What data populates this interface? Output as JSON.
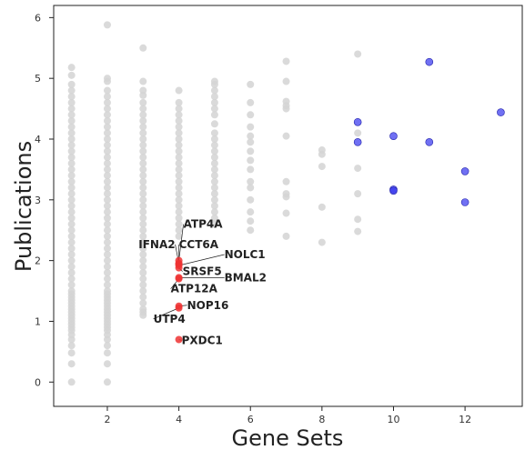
{
  "chart_data": {
    "type": "scatter",
    "xlabel": "Gene Sets",
    "ylabel": "Publications",
    "xlim": [
      0.5,
      13.6
    ],
    "ylim": [
      -0.4,
      6.2
    ],
    "xticks": [
      2,
      4,
      6,
      8,
      10,
      12
    ],
    "yticks": [
      0,
      1,
      2,
      3,
      4,
      5,
      6
    ],
    "grid": false,
    "colors": {
      "background": "#d3d3d3",
      "highlight": "#ee3333",
      "top": "#3333ee",
      "text": "#222222"
    },
    "background_series": [
      {
        "x": 1,
        "y": [
          0,
          0.3,
          0.48,
          0.6,
          0.7,
          0.78,
          0.85,
          0.9,
          0.95,
          1.0,
          1.05,
          1.1,
          1.15,
          1.2,
          1.25,
          1.3,
          1.35,
          1.4,
          1.45,
          1.5,
          1.6,
          1.7,
          1.8,
          1.9,
          2.0,
          2.1,
          2.2,
          2.3,
          2.4,
          2.5,
          2.6,
          2.7,
          2.8,
          2.9,
          3.0,
          3.1,
          3.2,
          3.3,
          3.4,
          3.5,
          3.6,
          3.7,
          3.8,
          3.9,
          4.0,
          4.1,
          4.2,
          4.3,
          4.4,
          4.5,
          4.6,
          4.7,
          4.8,
          4.9,
          5.05,
          5.18
        ]
      },
      {
        "x": 2,
        "y": [
          0,
          0.3,
          0.48,
          0.6,
          0.7,
          0.78,
          0.85,
          0.9,
          0.95,
          1.0,
          1.05,
          1.1,
          1.15,
          1.2,
          1.25,
          1.3,
          1.35,
          1.4,
          1.45,
          1.5,
          1.6,
          1.7,
          1.8,
          1.9,
          2.0,
          2.1,
          2.2,
          2.3,
          2.4,
          2.5,
          2.6,
          2.7,
          2.8,
          2.9,
          3.0,
          3.1,
          3.2,
          3.3,
          3.4,
          3.5,
          3.6,
          3.7,
          3.8,
          3.9,
          4.0,
          4.1,
          4.2,
          4.3,
          4.4,
          4.5,
          4.6,
          4.7,
          4.8,
          4.95,
          5.0,
          5.88
        ]
      },
      {
        "x": 3,
        "y": [
          1.1,
          1.15,
          1.2,
          1.3,
          1.4,
          1.5,
          1.6,
          1.7,
          1.8,
          1.9,
          2.0,
          2.1,
          2.2,
          2.3,
          2.4,
          2.5,
          2.6,
          2.7,
          2.8,
          2.9,
          3.0,
          3.1,
          3.2,
          3.3,
          3.4,
          3.5,
          3.6,
          3.7,
          3.8,
          3.9,
          4.0,
          4.1,
          4.2,
          4.3,
          4.4,
          4.5,
          4.6,
          4.72,
          4.8,
          4.95,
          5.5
        ]
      },
      {
        "x": 4,
        "y": [
          2.4,
          2.5,
          2.6,
          2.7,
          2.8,
          2.9,
          3.0,
          3.1,
          3.2,
          3.3,
          3.4,
          3.5,
          3.6,
          3.7,
          3.8,
          3.9,
          4.0,
          4.1,
          4.2,
          4.3,
          4.4,
          4.5,
          4.6,
          4.8
        ]
      },
      {
        "x": 5,
        "y": [
          2.6,
          2.7,
          2.8,
          2.9,
          3.0,
          3.1,
          3.2,
          3.3,
          3.4,
          3.5,
          3.6,
          3.7,
          3.8,
          3.9,
          4.0,
          4.1,
          4.25,
          4.4,
          4.5,
          4.6,
          4.7,
          4.8,
          4.9,
          4.95
        ]
      },
      {
        "x": 6,
        "y": [
          2.5,
          2.65,
          2.8,
          3.0,
          3.2,
          3.3,
          3.5,
          3.65,
          3.8,
          3.95,
          4.05,
          4.2,
          4.4,
          4.6,
          4.9
        ]
      },
      {
        "x": 7,
        "y": [
          2.4,
          2.78,
          3.05,
          3.1,
          3.3,
          4.05,
          4.5,
          4.55,
          4.62,
          4.95,
          5.28
        ]
      },
      {
        "x": 8,
        "y": [
          2.3,
          2.88,
          3.55,
          3.75,
          3.82
        ]
      },
      {
        "x": 9,
        "y": [
          2.48,
          2.68,
          3.1,
          3.52,
          4.1,
          5.4
        ]
      }
    ],
    "highlighted": [
      {
        "label": "ATP4A",
        "x": 4,
        "y": 2.0
      },
      {
        "label": "IFNA2",
        "x": 4,
        "y": 1.95
      },
      {
        "label": "CCT6A",
        "x": 4,
        "y": 1.95
      },
      {
        "label": "NOLC1",
        "x": 4,
        "y": 1.92
      },
      {
        "label": "SRSF5",
        "x": 4,
        "y": 1.88
      },
      {
        "label": "BMAL2",
        "x": 4,
        "y": 1.72
      },
      {
        "label": "ATP12A",
        "x": 4,
        "y": 1.7
      },
      {
        "label": "NOP16",
        "x": 4,
        "y": 1.25
      },
      {
        "label": "UTP4",
        "x": 4,
        "y": 1.22
      },
      {
        "label": "PXDC1",
        "x": 4,
        "y": 0.7
      }
    ],
    "top_series": [
      {
        "x": 9,
        "y": 4.28
      },
      {
        "x": 9,
        "y": 3.95
      },
      {
        "x": 10,
        "y": 4.05
      },
      {
        "x": 10,
        "y": 3.17
      },
      {
        "x": 10,
        "y": 3.15
      },
      {
        "x": 11,
        "y": 5.27
      },
      {
        "x": 11,
        "y": 3.95
      },
      {
        "x": 12,
        "y": 3.47
      },
      {
        "x": 12,
        "y": 2.96
      },
      {
        "x": 13,
        "y": 4.44
      }
    ]
  }
}
